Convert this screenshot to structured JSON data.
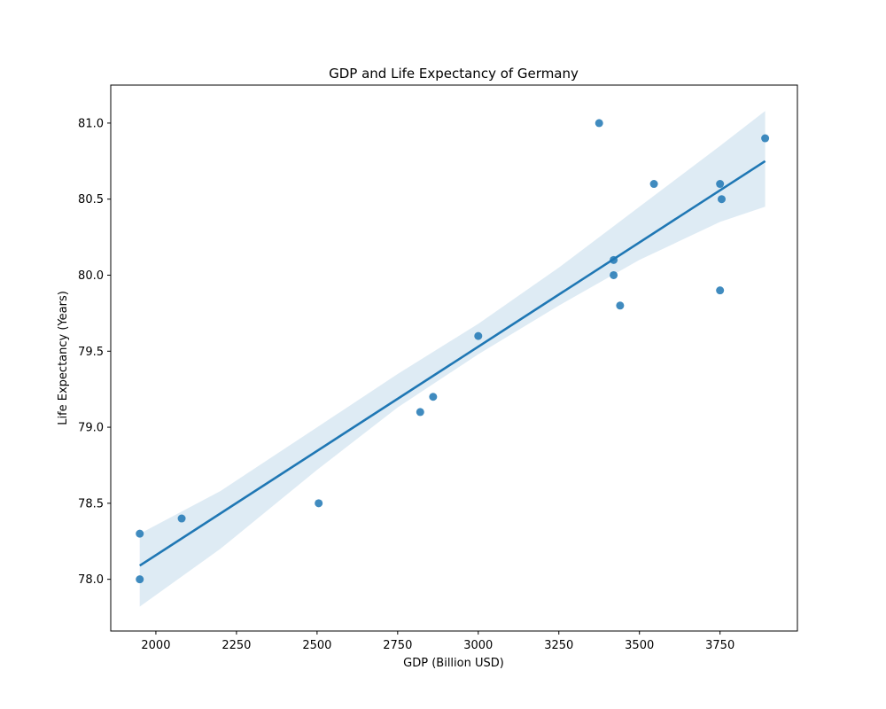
{
  "chart_data": {
    "type": "scatter",
    "title": "GDP and Life Expectancy of Germany",
    "xlabel": "GDP (Billion USD)",
    "ylabel": "Life Expectancy (Years)",
    "xlim": [
      1860,
      3990
    ],
    "ylim": [
      77.66,
      81.25
    ],
    "xticks": [
      2000,
      2250,
      2500,
      2750,
      3000,
      3250,
      3500,
      3750
    ],
    "yticks": [
      78.0,
      78.5,
      79.0,
      79.5,
      80.0,
      80.5,
      81.0
    ],
    "grid": false,
    "points": [
      {
        "x": 1950,
        "y": 78.0
      },
      {
        "x": 1950,
        "y": 78.3
      },
      {
        "x": 2080,
        "y": 78.4
      },
      {
        "x": 2505,
        "y": 78.5
      },
      {
        "x": 2820,
        "y": 79.1
      },
      {
        "x": 2860,
        "y": 79.2
      },
      {
        "x": 3000,
        "y": 79.6
      },
      {
        "x": 3375,
        "y": 81.0
      },
      {
        "x": 3420,
        "y": 80.0
      },
      {
        "x": 3420,
        "y": 80.1
      },
      {
        "x": 3440,
        "y": 79.8
      },
      {
        "x": 3545,
        "y": 80.6
      },
      {
        "x": 3750,
        "y": 80.6
      },
      {
        "x": 3750,
        "y": 79.9
      },
      {
        "x": 3755,
        "y": 80.5
      },
      {
        "x": 3890,
        "y": 80.9
      }
    ],
    "regression": {
      "x_start": 1950,
      "y_start": 78.09,
      "x_end": 3890,
      "y_end": 80.75,
      "ci_band": [
        {
          "x": 1950,
          "lo": 77.82,
          "hi": 78.3
        },
        {
          "x": 2200,
          "lo": 78.2,
          "hi": 78.58
        },
        {
          "x": 2500,
          "lo": 78.72,
          "hi": 79.0
        },
        {
          "x": 2750,
          "lo": 79.13,
          "hi": 79.35
        },
        {
          "x": 3000,
          "lo": 79.48,
          "hi": 79.68
        },
        {
          "x": 3250,
          "lo": 79.8,
          "hi": 80.05
        },
        {
          "x": 3500,
          "lo": 80.1,
          "hi": 80.45
        },
        {
          "x": 3750,
          "lo": 80.35,
          "hi": 80.85
        },
        {
          "x": 3890,
          "lo": 80.45,
          "hi": 81.08
        }
      ]
    },
    "colors": {
      "point": "#1f77b4",
      "line": "#1f77b4",
      "band": "#1f77b4"
    }
  }
}
